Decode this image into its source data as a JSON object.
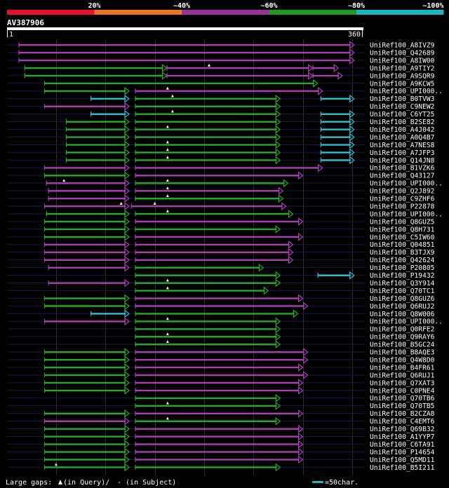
{
  "query_id": "AV387906",
  "scale_start": "1",
  "scale_end": "360",
  "query_length": 360,
  "legend": {
    "bins": [
      {
        "label": "",
        "color": "#e8112d"
      },
      {
        "label": "20%",
        "color": "#ee7722"
      },
      {
        "label": "~40%",
        "color": "#9c2f9c"
      },
      {
        "label": "~60%",
        "color": "#1c9b1c"
      },
      {
        "label": "~80%",
        "color": "#1cb5c5"
      },
      {
        "label": "~100%",
        "color": ""
      }
    ]
  },
  "footer": {
    "large_gaps": "Large gaps:",
    "in_query": "(in Query)/",
    "in_subject": "- (in Subject)",
    "scale_note": "=50char."
  },
  "chart_data": {
    "type": "alignment-overview",
    "x_range": [
      1,
      360
    ],
    "rows": [
      {
        "id": "UniRef100_A8IVZ9",
        "segs": [
          [
            12,
            352,
            "P"
          ]
        ],
        "gaps": []
      },
      {
        "id": "UniRef100_Q42689",
        "segs": [
          [
            12,
            352,
            "P"
          ]
        ],
        "gaps": []
      },
      {
        "id": "UniRef100_A8IW00",
        "segs": [
          [
            12,
            352,
            "P"
          ]
        ],
        "gaps": []
      },
      {
        "id": "UniRef100_A9TIY2",
        "segs": [
          [
            18,
            162,
            "G"
          ],
          [
            162,
            310,
            "P"
          ],
          [
            310,
            336,
            "P"
          ]
        ],
        "gaps": [
          205
        ]
      },
      {
        "id": "UniRef100_A9SQR9",
        "segs": [
          [
            18,
            162,
            "G"
          ],
          [
            162,
            310,
            "P"
          ],
          [
            310,
            340,
            "P"
          ]
        ],
        "gaps": []
      },
      {
        "id": "UniRef100_A9KCW5",
        "segs": [
          [
            38,
            315,
            "G"
          ]
        ],
        "gaps": []
      },
      {
        "id": "UniRef100_UPI000..",
        "segs": [
          [
            38,
            124,
            "G"
          ],
          [
            130,
            320,
            "P"
          ]
        ],
        "gaps": [
          163
        ]
      },
      {
        "id": "UniRef100_B0TVW3",
        "segs": [
          [
            85,
            124,
            "C"
          ],
          [
            130,
            277,
            "G"
          ],
          [
            318,
            352,
            "C"
          ]
        ],
        "gaps": [
          168
        ]
      },
      {
        "id": "UniRef100_C9NEW2",
        "segs": [
          [
            38,
            124,
            "P"
          ],
          [
            130,
            277,
            "G"
          ]
        ],
        "gaps": []
      },
      {
        "id": "UniRef100_C6YT25",
        "segs": [
          [
            85,
            124,
            "C"
          ],
          [
            130,
            277,
            "G"
          ],
          [
            318,
            352,
            "C"
          ]
        ],
        "gaps": [
          168
        ]
      },
      {
        "id": "UniRef100_B2SE82",
        "segs": [
          [
            60,
            124,
            "G"
          ],
          [
            130,
            277,
            "G"
          ],
          [
            318,
            352,
            "C"
          ]
        ],
        "gaps": []
      },
      {
        "id": "UniRef100_A4J042",
        "segs": [
          [
            60,
            124,
            "G"
          ],
          [
            130,
            277,
            "G"
          ],
          [
            318,
            352,
            "C"
          ]
        ],
        "gaps": [
          163
        ]
      },
      {
        "id": "UniRef100_A0Q4B7",
        "segs": [
          [
            60,
            124,
            "G"
          ],
          [
            130,
            277,
            "G"
          ],
          [
            318,
            352,
            "C"
          ]
        ],
        "gaps": []
      },
      {
        "id": "UniRef100_A7NES8",
        "segs": [
          [
            60,
            124,
            "G"
          ],
          [
            130,
            277,
            "G"
          ],
          [
            318,
            352,
            "C"
          ]
        ],
        "gaps": [
          163
        ]
      },
      {
        "id": "UniRef100_A7JFP3",
        "segs": [
          [
            60,
            124,
            "G"
          ],
          [
            130,
            277,
            "G"
          ],
          [
            318,
            352,
            "C"
          ]
        ],
        "gaps": [
          163
        ]
      },
      {
        "id": "UniRef100_Q14JN8",
        "segs": [
          [
            60,
            124,
            "G"
          ],
          [
            130,
            277,
            "G"
          ],
          [
            318,
            352,
            "C"
          ]
        ],
        "gaps": [
          163
        ]
      },
      {
        "id": "UniRef100_B1VZK6",
        "segs": [
          [
            38,
            124,
            "P"
          ],
          [
            130,
            320,
            "P"
          ]
        ],
        "gaps": []
      },
      {
        "id": "UniRef100_Q43127",
        "segs": [
          [
            38,
            124,
            "G"
          ],
          [
            130,
            300,
            "P"
          ]
        ],
        "gaps": []
      },
      {
        "id": "UniRef100_UPI000..",
        "segs": [
          [
            40,
            124,
            "P"
          ],
          [
            130,
            285,
            "G"
          ]
        ],
        "gaps": [
          58,
          163
        ]
      },
      {
        "id": "UniRef100_Q2J892",
        "segs": [
          [
            42,
            124,
            "P"
          ],
          [
            130,
            280,
            "P"
          ]
        ],
        "gaps": [
          163
        ]
      },
      {
        "id": "UniRef100_C9ZHF6",
        "segs": [
          [
            42,
            124,
            "P"
          ],
          [
            130,
            280,
            "G"
          ]
        ],
        "gaps": [
          163
        ]
      },
      {
        "id": "UniRef100_P22878",
        "segs": [
          [
            38,
            124,
            "P"
          ],
          [
            126,
            283,
            "P"
          ]
        ],
        "gaps": [
          116,
          150
        ]
      },
      {
        "id": "UniRef100_UPI000..",
        "segs": [
          [
            40,
            124,
            "G"
          ],
          [
            130,
            290,
            "G"
          ]
        ],
        "gaps": [
          163
        ]
      },
      {
        "id": "UniRef100_Q8GUZ5",
        "segs": [
          [
            38,
            124,
            "G"
          ],
          [
            130,
            300,
            "P"
          ]
        ],
        "gaps": []
      },
      {
        "id": "UniRef100_Q8H731",
        "segs": [
          [
            38,
            124,
            "G"
          ],
          [
            130,
            277,
            "G"
          ]
        ],
        "gaps": []
      },
      {
        "id": "UniRef100_C5IW60",
        "segs": [
          [
            38,
            124,
            "G"
          ],
          [
            130,
            300,
            "P"
          ]
        ],
        "gaps": []
      },
      {
        "id": "UniRef100_Q04851",
        "segs": [
          [
            38,
            124,
            "P"
          ],
          [
            130,
            290,
            "P"
          ]
        ],
        "gaps": []
      },
      {
        "id": "UniRef100_B3TJX9",
        "segs": [
          [
            38,
            124,
            "P"
          ],
          [
            130,
            290,
            "P"
          ]
        ],
        "gaps": []
      },
      {
        "id": "UniRef100_Q42624",
        "segs": [
          [
            38,
            124,
            "P"
          ],
          [
            130,
            290,
            "P"
          ]
        ],
        "gaps": []
      },
      {
        "id": "UniRef100_P20805",
        "segs": [
          [
            42,
            124,
            "P"
          ],
          [
            130,
            260,
            "G"
          ]
        ],
        "gaps": []
      },
      {
        "id": "UniRef100_P19432",
        "segs": [
          [
            130,
            277,
            "G"
          ],
          [
            315,
            352,
            "C"
          ]
        ],
        "gaps": []
      },
      {
        "id": "UniRef100_Q3Y914",
        "segs": [
          [
            42,
            124,
            "P"
          ],
          [
            130,
            277,
            "G"
          ]
        ],
        "gaps": [
          163
        ]
      },
      {
        "id": "UniRef100_Q70TC1",
        "segs": [
          [
            130,
            265,
            "G"
          ]
        ],
        "gaps": [
          163
        ]
      },
      {
        "id": "UniRef100_Q8GUZ6",
        "segs": [
          [
            38,
            124,
            "G"
          ],
          [
            130,
            300,
            "P"
          ]
        ],
        "gaps": []
      },
      {
        "id": "UniRef100_Q6RUJ2",
        "segs": [
          [
            38,
            124,
            "G"
          ],
          [
            130,
            305,
            "P"
          ]
        ],
        "gaps": []
      },
      {
        "id": "UniRef100_Q8W006",
        "segs": [
          [
            85,
            124,
            "C"
          ],
          [
            130,
            295,
            "G"
          ]
        ],
        "gaps": []
      },
      {
        "id": "UniRef100_UPI000..",
        "segs": [
          [
            38,
            124,
            "P"
          ],
          [
            130,
            277,
            "G"
          ]
        ],
        "gaps": [
          163
        ]
      },
      {
        "id": "UniRef100_Q0RFE2",
        "segs": [
          [
            130,
            277,
            "G"
          ]
        ],
        "gaps": []
      },
      {
        "id": "UniRef100_Q9RAY6",
        "segs": [
          [
            130,
            277,
            "G"
          ]
        ],
        "gaps": [
          163
        ]
      },
      {
        "id": "UniRef100_B5GC24",
        "segs": [
          [
            130,
            277,
            "G"
          ]
        ],
        "gaps": [
          163
        ]
      },
      {
        "id": "UniRef100_B8AQE3",
        "segs": [
          [
            38,
            124,
            "G"
          ],
          [
            130,
            305,
            "P"
          ]
        ],
        "gaps": []
      },
      {
        "id": "UniRef100_Q4W8D0",
        "segs": [
          [
            38,
            124,
            "G"
          ],
          [
            130,
            305,
            "P"
          ]
        ],
        "gaps": []
      },
      {
        "id": "UniRef100_B4FR61",
        "segs": [
          [
            38,
            124,
            "G"
          ],
          [
            130,
            300,
            "P"
          ]
        ],
        "gaps": []
      },
      {
        "id": "UniRef100_Q6RUJ1",
        "segs": [
          [
            38,
            124,
            "G"
          ],
          [
            130,
            305,
            "P"
          ]
        ],
        "gaps": []
      },
      {
        "id": "UniRef100_Q7XAT3",
        "segs": [
          [
            38,
            124,
            "G"
          ],
          [
            130,
            300,
            "P"
          ]
        ],
        "gaps": []
      },
      {
        "id": "UniRef100_C0PNE4",
        "segs": [
          [
            38,
            124,
            "G"
          ],
          [
            130,
            300,
            "P"
          ]
        ],
        "gaps": []
      },
      {
        "id": "UniRef100_Q70TB6",
        "segs": [
          [
            130,
            277,
            "G"
          ]
        ],
        "gaps": []
      },
      {
        "id": "UniRef100_Q70TB5",
        "segs": [
          [
            130,
            277,
            "G"
          ]
        ],
        "gaps": [
          163
        ]
      },
      {
        "id": "UniRef100_B2CZA8",
        "segs": [
          [
            38,
            124,
            "G"
          ],
          [
            130,
            300,
            "P"
          ]
        ],
        "gaps": []
      },
      {
        "id": "UniRef100_C4EMT6",
        "segs": [
          [
            38,
            124,
            "P"
          ],
          [
            130,
            277,
            "G"
          ]
        ],
        "gaps": [
          163
        ]
      },
      {
        "id": "UniRef100_Q69B32",
        "segs": [
          [
            38,
            124,
            "G"
          ],
          [
            130,
            300,
            "P"
          ]
        ],
        "gaps": []
      },
      {
        "id": "UniRef100_A1YYP7",
        "segs": [
          [
            38,
            124,
            "G"
          ],
          [
            130,
            300,
            "P"
          ]
        ],
        "gaps": []
      },
      {
        "id": "UniRef100_C6TA91",
        "segs": [
          [
            38,
            124,
            "G"
          ],
          [
            130,
            300,
            "P"
          ]
        ],
        "gaps": []
      },
      {
        "id": "UniRef100_P14654",
        "segs": [
          [
            38,
            124,
            "G"
          ],
          [
            130,
            300,
            "P"
          ]
        ],
        "gaps": []
      },
      {
        "id": "UniRef100_Q5MD11",
        "segs": [
          [
            38,
            124,
            "G"
          ],
          [
            130,
            300,
            "P"
          ]
        ],
        "gaps": []
      },
      {
        "id": "UniRef100_B5I211",
        "segs": [
          [
            38,
            124,
            "G"
          ],
          [
            130,
            277,
            "G"
          ]
        ],
        "gaps": [
          50
        ]
      }
    ]
  }
}
